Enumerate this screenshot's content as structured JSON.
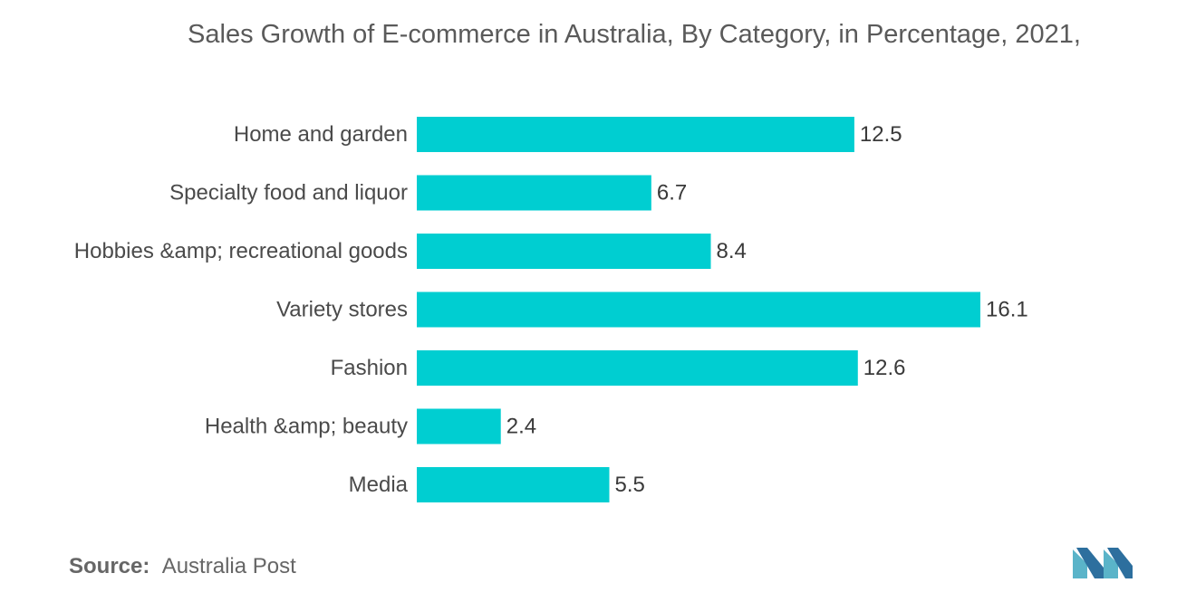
{
  "chart_data": {
    "type": "bar",
    "orientation": "horizontal",
    "title": "Sales Growth of E-commerce in Australia, By Category, in Percentage, 2021,",
    "categories": [
      "Home and garden",
      "Specialty food and liquor",
      "Hobbies &amp; recreational goods",
      "Variety stores",
      "Fashion",
      "Health &amp; beauty",
      "Media"
    ],
    "values": [
      12.5,
      6.7,
      8.4,
      16.1,
      12.6,
      2.4,
      5.5
    ],
    "value_labels": [
      "12.5",
      "6.7",
      "8.4",
      "16.1",
      "12.6",
      "2.4",
      "5.5"
    ],
    "xlim": [
      0,
      16.1
    ],
    "grid": false,
    "bar_color": "#00ced1"
  },
  "source": {
    "key": "Source:",
    "value": "Australia Post"
  },
  "logo_icon": "mordor-intelligence-logo-icon"
}
